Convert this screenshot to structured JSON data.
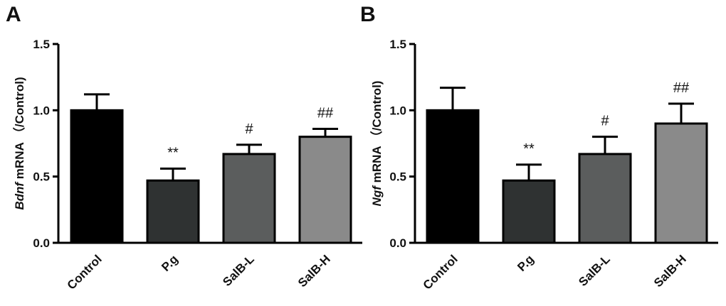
{
  "chart_data": [
    {
      "type": "bar",
      "panel": "A",
      "gene": "Bdnf",
      "ylabel_suffix": " mRNA （/Control)",
      "categories": [
        "Control",
        "P.g",
        "SalB-L",
        "SalB-H"
      ],
      "values": [
        1.0,
        0.47,
        0.67,
        0.8
      ],
      "errors": [
        0.12,
        0.09,
        0.07,
        0.06
      ],
      "significance": [
        "",
        "**",
        "#",
        "##"
      ],
      "bar_colors": [
        "#000000",
        "#2f3232",
        "#5b5d5d",
        "#8a8a8a"
      ],
      "ylim": [
        0,
        1.5
      ],
      "yticks": [
        "0.0",
        "0.5",
        "1.0",
        "1.5"
      ],
      "ytick_values": [
        0,
        0.5,
        1.0,
        1.5
      ]
    },
    {
      "type": "bar",
      "panel": "B",
      "gene": "Ngf",
      "ylabel_suffix": " mRNA （/Control)",
      "categories": [
        "Control",
        "P.g",
        "SalB-L",
        "SalB-H"
      ],
      "values": [
        1.0,
        0.47,
        0.67,
        0.9
      ],
      "errors": [
        0.17,
        0.12,
        0.13,
        0.15
      ],
      "significance": [
        "",
        "**",
        "#",
        "##"
      ],
      "bar_colors": [
        "#000000",
        "#2f3232",
        "#5b5d5d",
        "#8a8a8a"
      ],
      "ylim": [
        0,
        1.5
      ],
      "yticks": [
        "0.0",
        "0.5",
        "1.0",
        "1.5"
      ],
      "ytick_values": [
        0,
        0.5,
        1.0,
        1.5
      ]
    }
  ]
}
